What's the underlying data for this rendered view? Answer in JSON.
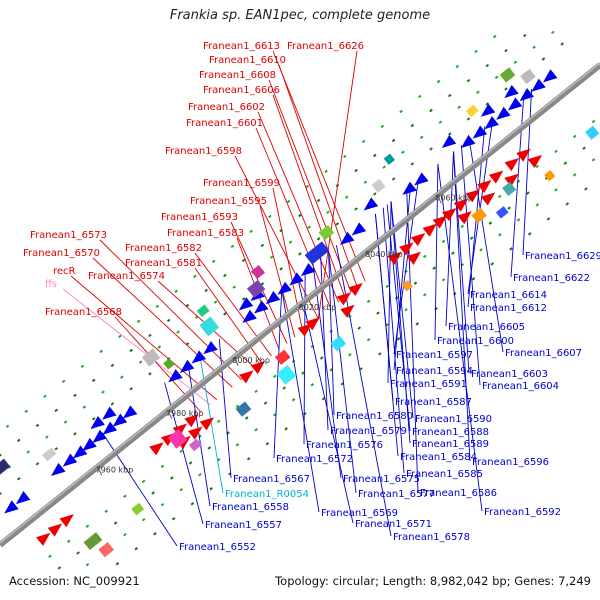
{
  "title": "Frankia sp. EAN1pec, complete genome",
  "accession_text": "Accession: NC_009921",
  "summary_text": "Topology: circular; Length: 8,982,042 bp; Genes: 7,249",
  "colors": {
    "forward_label": "#dd0000",
    "reverse_label": "#0000cc",
    "ncrna_label": "#00b4d2",
    "ffs_label": "#ff88bb",
    "forward_arrow": "#ee0000",
    "reverse_arrow": "#0000ee",
    "axis": "#888888"
  },
  "ticks": [
    {
      "label": "7960 kbp"
    },
    {
      "label": "7980 kbp"
    },
    {
      "label": "8000 kbp"
    },
    {
      "label": "8020 kbp"
    },
    {
      "label": "8040 kbp"
    },
    {
      "label": "8060 kbp"
    }
  ],
  "forward_labels": [
    "Franean1_6613",
    "Franean1_6626",
    "Franean1_6610",
    "Franean1_6608",
    "Franean1_6606",
    "Franean1_6602",
    "Franean1_6601",
    "Franean1_6598",
    "Franean1_6599",
    "Franean1_6595",
    "Franean1_6593",
    "Franean1_6583",
    "Franean1_6573",
    "Franean1_6582",
    "Franean1_6570",
    "Franean1_6581",
    "recR",
    "Franean1_6574",
    "ffs",
    "Franean1_6568"
  ],
  "reverse_labels": [
    "Franean1_6629",
    "Franean1_6622",
    "Franean1_6614",
    "Franean1_6612",
    "Franean1_6605",
    "Franean1_6600",
    "Franean1_6607",
    "Franean1_6597",
    "Franean1_6594",
    "Franean1_6603",
    "Franean1_6591",
    "Franean1_6604",
    "Franean1_6587",
    "Franean1_6580",
    "Franean1_6590",
    "Franean1_6579",
    "Franean1_6588",
    "Franean1_6576",
    "Franean1_6589",
    "Franean1_6572",
    "Franean1_6584",
    "Franean1_6596",
    "Franean1_6585",
    "Franean1_6567",
    "Franean1_6575",
    "Franean1_6586",
    "Franean1_R0054",
    "Franean1_6577",
    "Franean1_6558",
    "Franean1_6592",
    "Franean1_6569",
    "Franean1_6557",
    "Franean1_6571",
    "Franean1_6578",
    "Franean1_6552"
  ]
}
